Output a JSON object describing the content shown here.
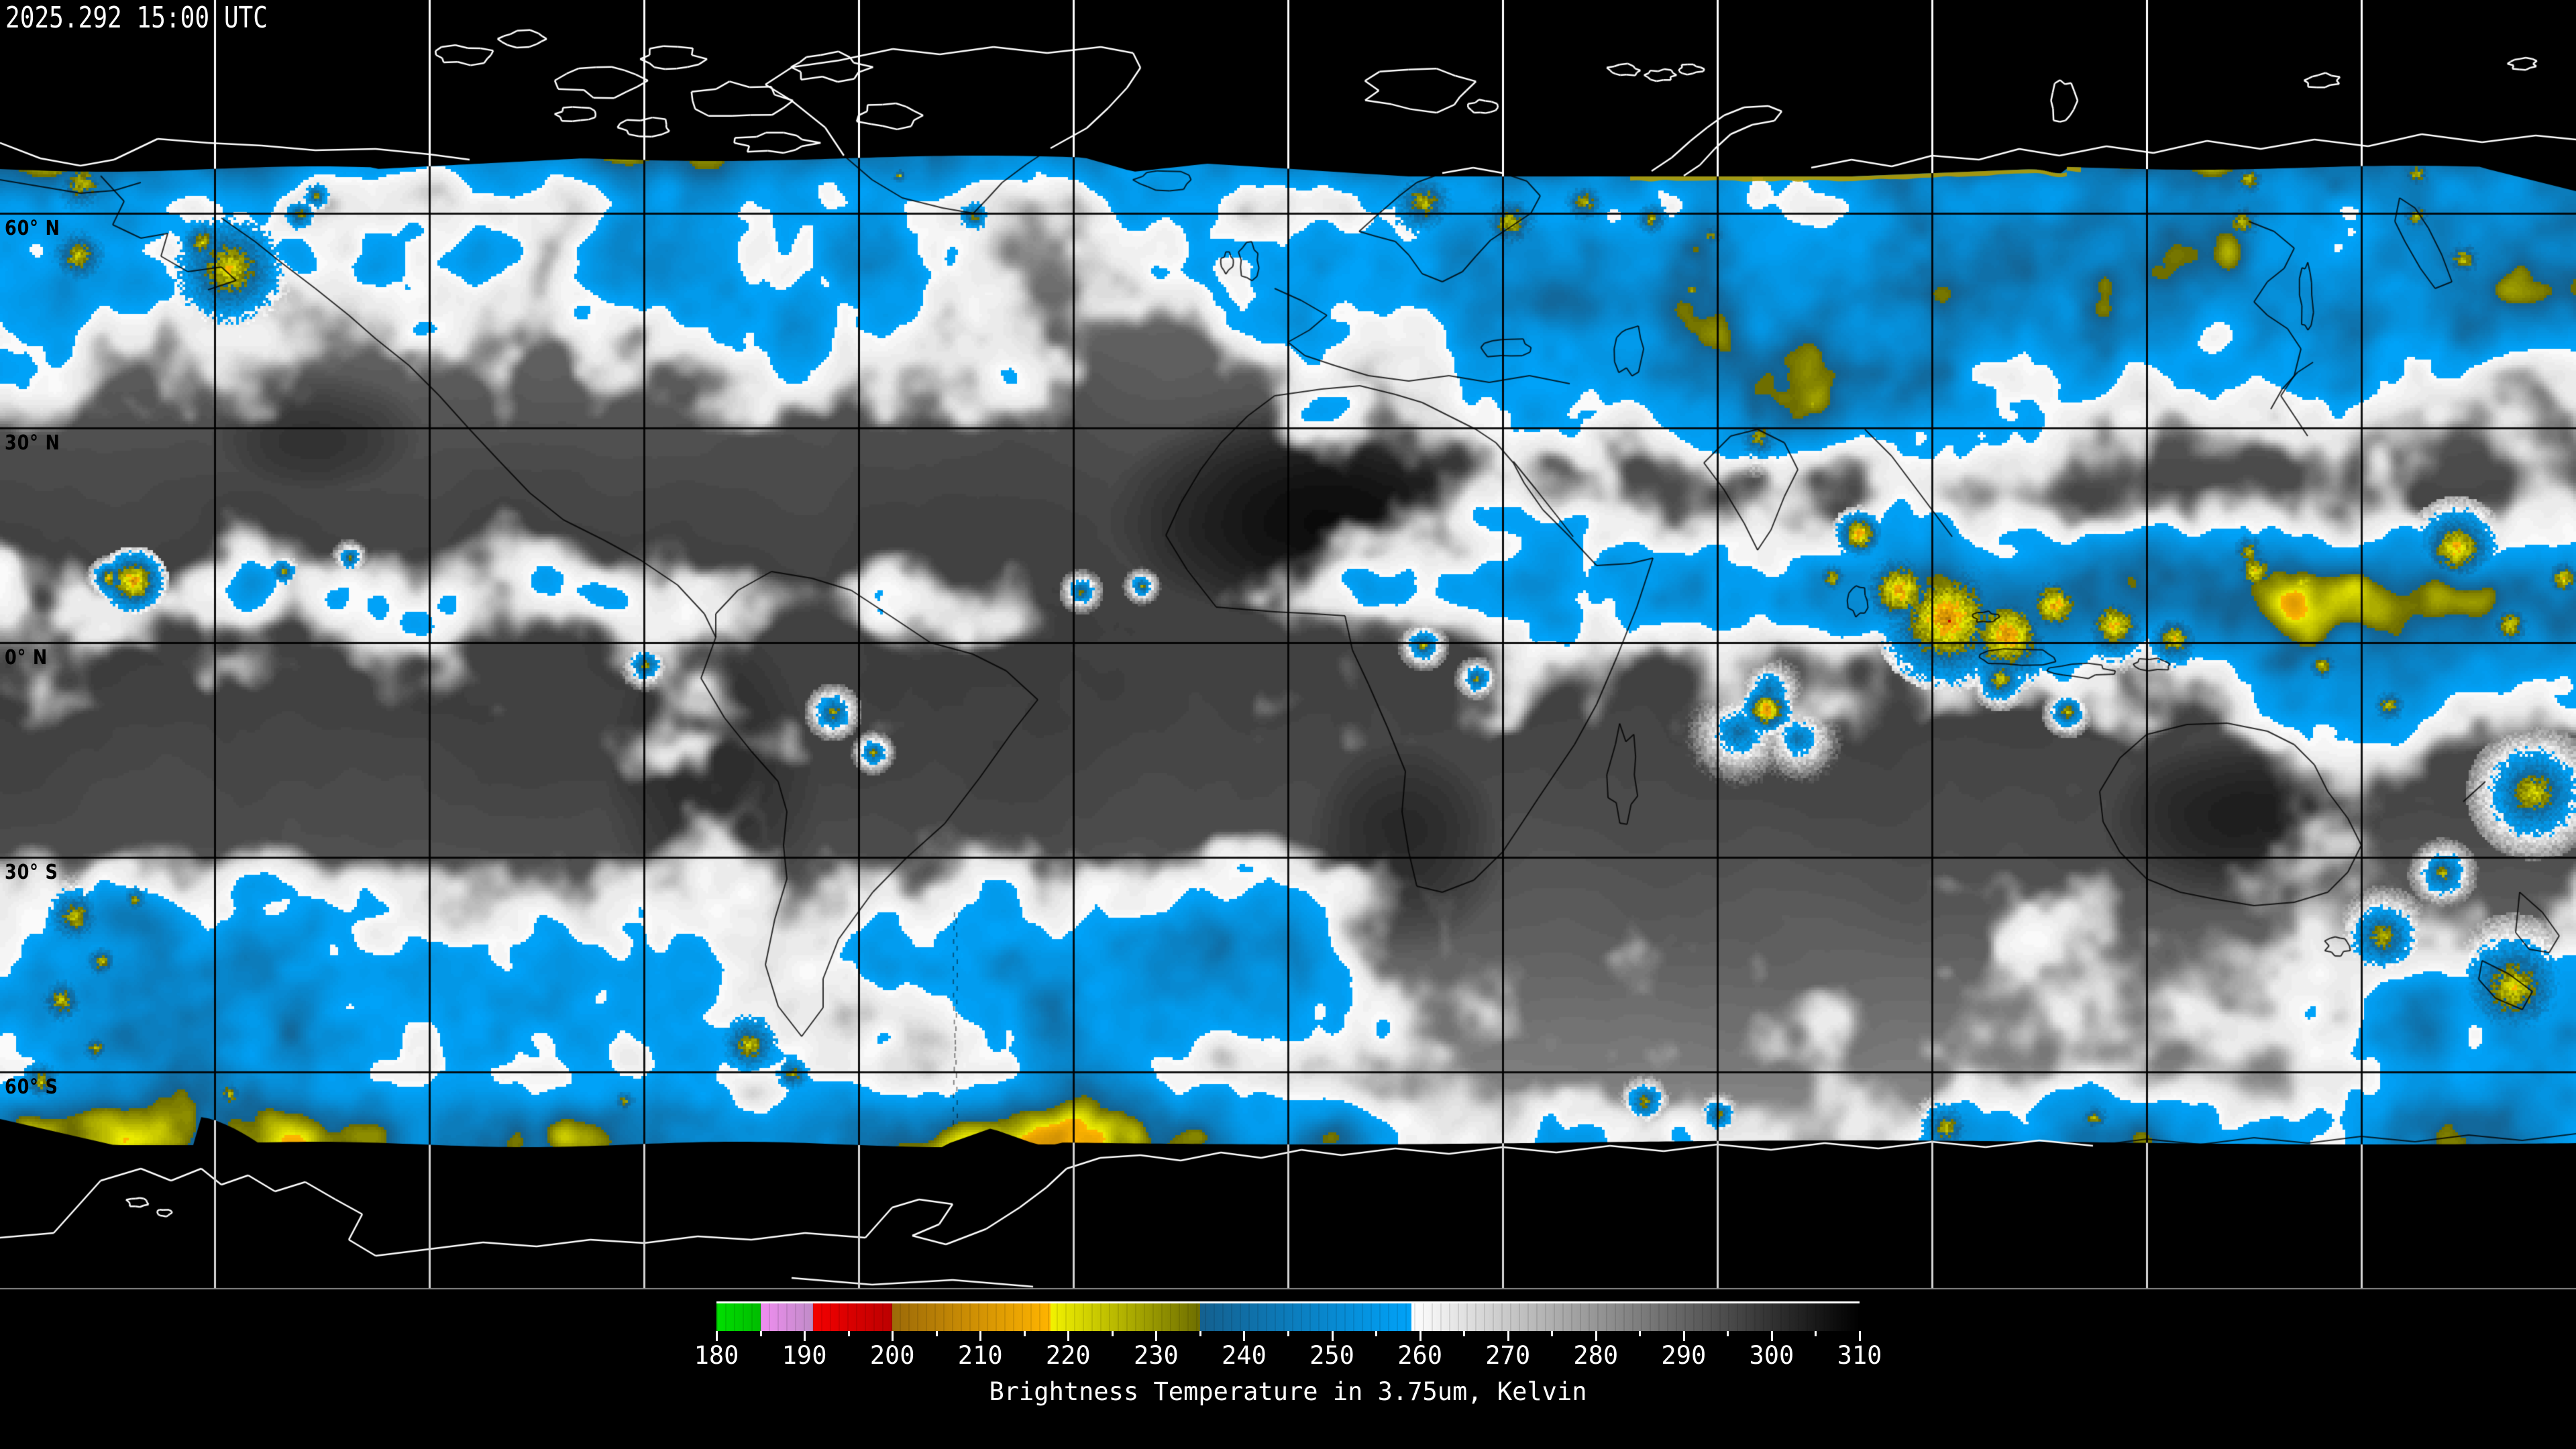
{
  "header": {
    "timestamp": "2025.292 15:00 UTC"
  },
  "map": {
    "projection": "equirectangular-global-composite",
    "latitude_labels": [
      {
        "label": "60° N",
        "degrees": 60
      },
      {
        "label": "30° N",
        "degrees": 30
      },
      {
        "label": "0° N",
        "degrees": 0
      },
      {
        "label": "30° S",
        "degrees": -30
      },
      {
        "label": "60° S",
        "degrees": -60
      }
    ],
    "graticule": {
      "lat_step_deg": 30,
      "lon_step_deg": 30
    },
    "background_color": "#000000",
    "coastline_color_over_space": "#ffffff",
    "coastline_color_over_imagery": "#000000"
  },
  "colorbar": {
    "title": "Brightness Temperature in 3.75um, Kelvin",
    "min": 180,
    "max": 310,
    "tick_step": 10,
    "minor_tick_step": 5,
    "tick_labels": [
      "180",
      "190",
      "200",
      "210",
      "220",
      "230",
      "240",
      "250",
      "260",
      "270",
      "280",
      "290",
      "300",
      "310"
    ],
    "segments": [
      {
        "from": 180,
        "to": 185,
        "color_start": "#00e000",
        "color_end": "#00bc00"
      },
      {
        "from": 185,
        "to": 191,
        "color_start": "#f08df0",
        "color_end": "#c08cc8"
      },
      {
        "from": 191,
        "to": 200,
        "color_start": "#f40000",
        "color_end": "#bc0000"
      },
      {
        "from": 200,
        "to": 218,
        "color_start": "#9c6a08",
        "color_end": "#ffb400"
      },
      {
        "from": 218,
        "to": 235,
        "color_start": "#f2f200",
        "color_end": "#6e6e00"
      },
      {
        "from": 235,
        "to": 259,
        "color_start": "#14608f",
        "color_end": "#00a2f8"
      },
      {
        "from": 259,
        "to": 310,
        "color_start": "#ffffff",
        "color_end": "#000000"
      }
    ]
  }
}
